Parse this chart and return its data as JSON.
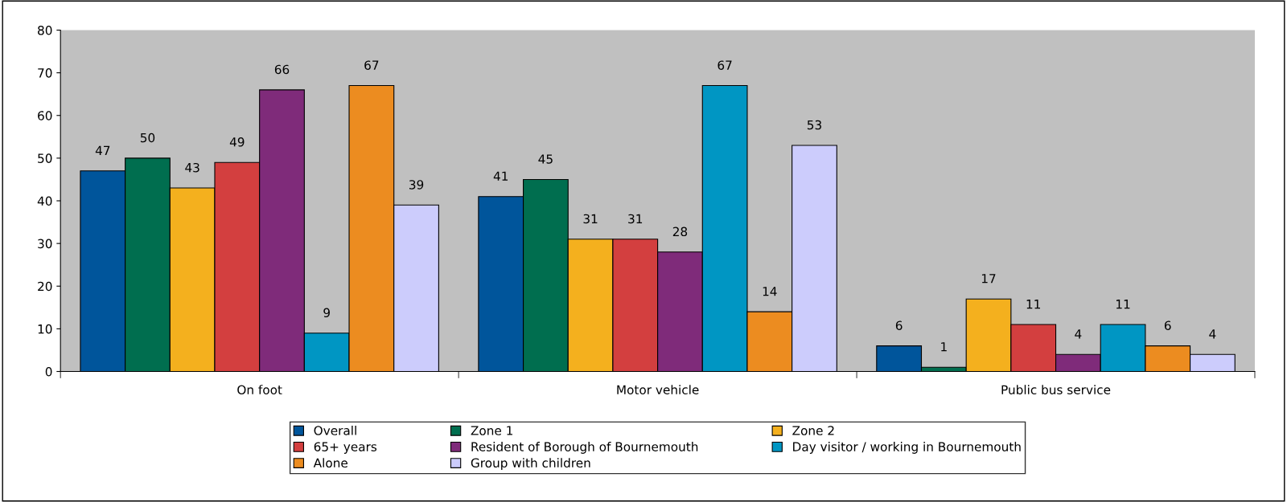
{
  "chart_data": {
    "type": "bar",
    "categories": [
      "On foot",
      "Motor vehicle",
      "Public bus service"
    ],
    "series": [
      {
        "name": "Overall",
        "color": "#00559b",
        "values": [
          47,
          41,
          6
        ]
      },
      {
        "name": "Zone 1",
        "color": "#006e4f",
        "values": [
          50,
          45,
          1
        ]
      },
      {
        "name": "Zone 2",
        "color": "#f4b01e",
        "values": [
          43,
          31,
          17
        ]
      },
      {
        "name": "65+ years",
        "color": "#d33f3f",
        "values": [
          49,
          31,
          11
        ]
      },
      {
        "name": "Resident of Borough of Bournemouth",
        "color": "#7f2b7a",
        "values": [
          66,
          28,
          4
        ]
      },
      {
        "name": "Day visitor / working in Bournemouth",
        "color": "#0096c3",
        "values": [
          9,
          67,
          11
        ]
      },
      {
        "name": "Alone",
        "color": "#ec8c20",
        "values": [
          67,
          14,
          6
        ]
      },
      {
        "name": "Group with children",
        "color": "#ccccfc",
        "values": [
          39,
          53,
          4
        ]
      }
    ],
    "ylim": [
      0,
      80
    ],
    "yticks": [
      0,
      10,
      20,
      30,
      40,
      50,
      60,
      70,
      80
    ],
    "grid": false,
    "legend": "bottom",
    "data_labels": true
  }
}
